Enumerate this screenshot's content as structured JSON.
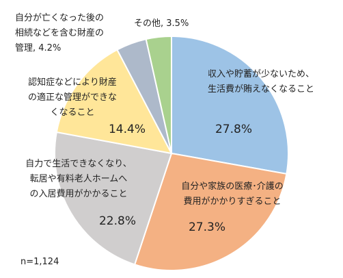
{
  "chart_data": {
    "type": "pie",
    "title": "",
    "colors": {
      "slice_1": "#9dc3e6",
      "slice_2": "#f4b183",
      "slice_3": "#d0cece",
      "slice_4": "#ffe699",
      "slice_5": "#adb9ca",
      "slice_6": "#a9d18e",
      "border": "#ffffff"
    },
    "slices": [
      {
        "label_lines": [
          "収入や貯蓄が少ないため、",
          "生活費が賄えなくなること"
        ],
        "value": 27.8,
        "value_label": "27.8%"
      },
      {
        "label_lines": [
          "自分や家族の医療･介護の",
          "費用がかかりすぎること"
        ],
        "value": 27.3,
        "value_label": "27.3%"
      },
      {
        "label_lines": [
          "自力で生活できなくなり、",
          "転居や有料老人ホームへ",
          "の入居費用がかかること"
        ],
        "value": 22.8,
        "value_label": "22.8%"
      },
      {
        "label_lines": [
          "認知症などにより財産",
          "の適正な管理ができな",
          "くなること"
        ],
        "value": 14.4,
        "value_label": "14.4%"
      },
      {
        "label_lines": [
          "自分が亡くなった後の",
          "相続などを含む財産の",
          "管理, 4.2%"
        ],
        "value": 4.2,
        "value_label": ""
      },
      {
        "label_lines": [
          "その他, 3.5%"
        ],
        "value": 3.5,
        "value_label": ""
      }
    ],
    "note": "n=1,124"
  }
}
